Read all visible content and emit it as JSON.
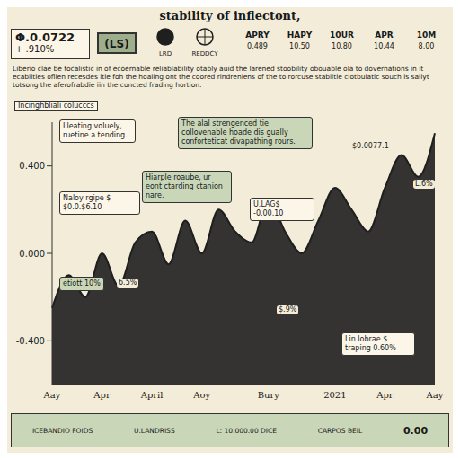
{
  "chart_data": {
    "type": "area",
    "title": "stability of inflectont,",
    "categories": [
      "Aay",
      null,
      null,
      "Apr",
      null,
      null,
      "April",
      null,
      null,
      "Aoy",
      null,
      null,
      null,
      "Bury",
      null,
      null,
      null,
      "2021",
      null,
      null,
      "Apr",
      null,
      null,
      "Aay"
    ],
    "values": [
      -0.25,
      -0.1,
      -0.2,
      0.0,
      -0.15,
      0.05,
      0.1,
      -0.05,
      0.15,
      0.0,
      0.2,
      0.1,
      0.05,
      0.25,
      0.1,
      0.0,
      0.15,
      0.3,
      0.2,
      0.1,
      0.3,
      0.45,
      0.35,
      0.55
    ],
    "color": "#1f1f1f",
    "ylim": [
      -0.6,
      0.6
    ],
    "yticks": [
      {
        "value": -0.4,
        "label": "-0.400"
      },
      {
        "value": 0,
        "label": "0.000"
      },
      {
        "value": 0.4,
        "label": "0.400"
      }
    ],
    "grid": false,
    "annotations": [
      "The alal strengenced tie collovenable hoade dis gually conforteticat divapathing rours.",
      "Lleating voluely, ruetine a tending.",
      "Hiarple roaube, ur eont ctarding ctanion nare.",
      "Naloy rgipe $ $0.0.$6.10",
      "etiott 10%",
      "U.LAG$ -0.00.10",
      "$0.0077.1",
      "L.6%",
      "6.5%",
      "Lin lobrae $ traping 0.60%",
      "$.9%"
    ]
  },
  "header": {
    "price": "Φ.0.0722",
    "change": "+ .910%",
    "symbol": "(LS)",
    "icons": [
      "LRD",
      "REDDCY"
    ],
    "months": [
      "APRY",
      "HAPY",
      "10UR",
      "APR",
      "10M"
    ],
    "month_values": [
      "0.489",
      "10.50",
      "10.80",
      "10.44",
      "8.00"
    ],
    "paragraph": "Liberio clae be focalistic in of ecoernable reliablability otably auid the larened stoobility obouable ola to dovernations in it ecablities ofllen recesdes itie foh the hoailng ont the coored rindrenlens of the to rorcuse stabiitie clotbulatic souch is sallyt totsong the aferofrabdie iin the concted frading hortion.",
    "side_label": "Incinghbliali colucccs"
  },
  "footer": {
    "items": [
      "ICEBANDIO FOIDS",
      "U.LANDRISS",
      "L: 10.000.00 DICE",
      "CARPOS BEIL"
    ],
    "value": "0.00"
  }
}
